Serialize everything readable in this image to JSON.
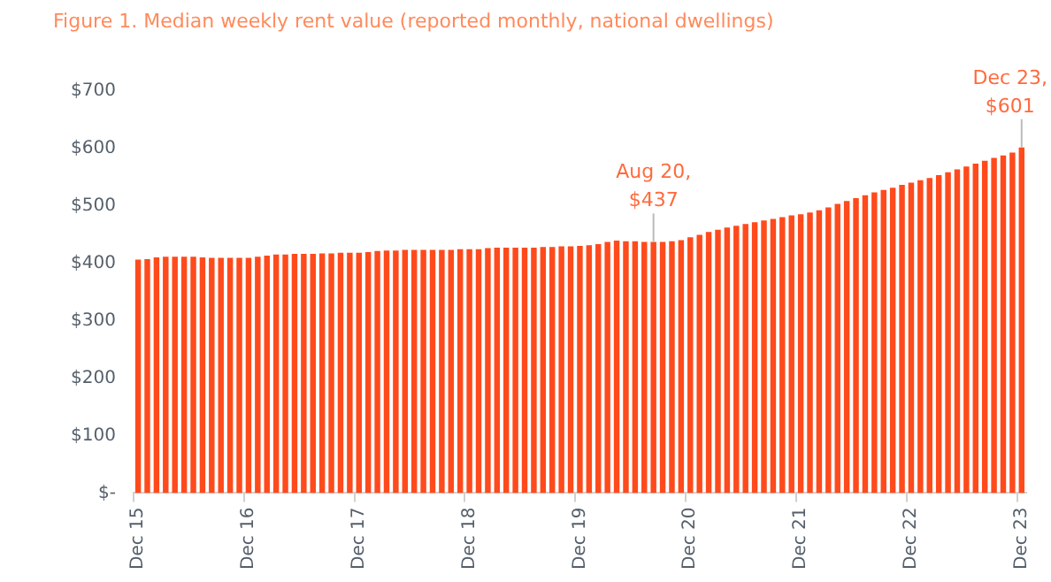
{
  "chart_data": {
    "type": "bar",
    "title": "Figure 1. Median weekly rent value (reported monthly, national dwellings)",
    "categories": [
      "Dec 15",
      null,
      null,
      null,
      null,
      null,
      null,
      null,
      null,
      null,
      null,
      null,
      "Dec 16",
      null,
      null,
      null,
      null,
      null,
      null,
      null,
      null,
      null,
      null,
      null,
      "Dec 17",
      null,
      null,
      null,
      null,
      null,
      null,
      null,
      null,
      null,
      null,
      null,
      "Dec 18",
      null,
      null,
      null,
      null,
      null,
      null,
      null,
      null,
      null,
      null,
      null,
      "Dec 19",
      null,
      null,
      null,
      null,
      null,
      null,
      null,
      null,
      null,
      null,
      null,
      "Dec 20",
      null,
      null,
      null,
      null,
      null,
      null,
      null,
      null,
      null,
      null,
      null,
      "Dec 21",
      null,
      null,
      null,
      null,
      null,
      null,
      null,
      null,
      null,
      null,
      null,
      "Dec 22",
      null,
      null,
      null,
      null,
      null,
      null,
      null,
      null,
      null,
      null,
      null,
      "Dec 23"
    ],
    "values": [
      406,
      407,
      410,
      411,
      411,
      411,
      411,
      410,
      409,
      409,
      409,
      409,
      409,
      411,
      413,
      415,
      415,
      416,
      416,
      416,
      417,
      417,
      418,
      418,
      418,
      419,
      421,
      422,
      422,
      423,
      423,
      423,
      423,
      423,
      423,
      424,
      424,
      424,
      426,
      427,
      427,
      427,
      427,
      427,
      428,
      428,
      429,
      429,
      430,
      431,
      433,
      437,
      439,
      438,
      438,
      437,
      437,
      437,
      438,
      440,
      445,
      449,
      454,
      458,
      462,
      465,
      468,
      471,
      474,
      477,
      480,
      483,
      485,
      488,
      492,
      497,
      503,
      508,
      513,
      518,
      523,
      527,
      531,
      536,
      540,
      544,
      548,
      553,
      558,
      563,
      568,
      573,
      578,
      583,
      587,
      592,
      601
    ],
    "value_labels": [
      null,
      null,
      null,
      null,
      null,
      null,
      null,
      null,
      null,
      null,
      null,
      null,
      null,
      null,
      null,
      null,
      null,
      null,
      null,
      null,
      null,
      null,
      null,
      null,
      null,
      null,
      null,
      null,
      null,
      null,
      null,
      null,
      null,
      null,
      null,
      null,
      null,
      null,
      null,
      null,
      null,
      null,
      null,
      null,
      null,
      null,
      null,
      null,
      null,
      null,
      null,
      null,
      null,
      null,
      null,
      null,
      "Aug 20,\n$437",
      null,
      null,
      null,
      null,
      null,
      null,
      null,
      null,
      null,
      null,
      null,
      null,
      null,
      null,
      null,
      null,
      null,
      null,
      null,
      null,
      null,
      null,
      null,
      null,
      null,
      null,
      null,
      null,
      null,
      null,
      null,
      null,
      null,
      null,
      null,
      null,
      null,
      null,
      null,
      "Dec 23,\n$601"
    ],
    "color": "#ff4a1c",
    "ylim": [
      0,
      700
    ],
    "yticks": [
      {
        "value": 0,
        "label": "$-"
      },
      {
        "value": 100,
        "label": "$100"
      },
      {
        "value": 200,
        "label": "$200"
      },
      {
        "value": 300,
        "label": "$300"
      },
      {
        "value": 400,
        "label": "$400"
      },
      {
        "value": 500,
        "label": "$500"
      },
      {
        "value": 600,
        "label": "$600"
      },
      {
        "value": 700,
        "label": "$700"
      }
    ],
    "grid": false,
    "legend": false
  }
}
